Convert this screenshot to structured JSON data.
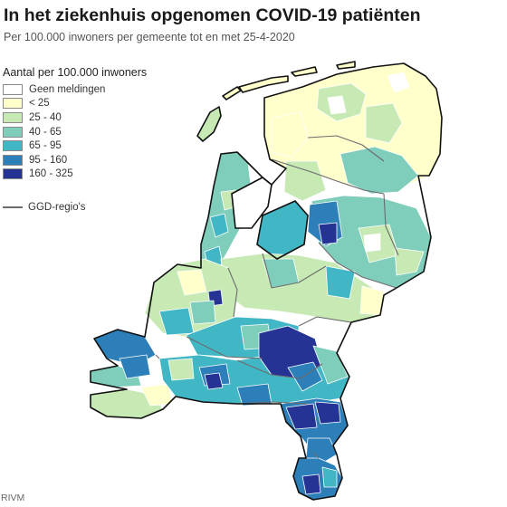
{
  "title": "In het ziekenhuis opgenomen COVID-19 patiënten",
  "subtitle": "Per 100.000 inwoners per gemeente tot en met 25-4-2020",
  "legend": {
    "title": "Aantal per 100.000 inwoners",
    "items": [
      {
        "label": "Geen meldingen",
        "color": "#ffffff"
      },
      {
        "label": "< 25",
        "color": "#ffffcc"
      },
      {
        "label": "25 - 40",
        "color": "#c7e9b4"
      },
      {
        "label": "40 - 65",
        "color": "#7fcdbb"
      },
      {
        "label": "65 - 95",
        "color": "#41b6c4"
      },
      {
        "label": "95 - 160",
        "color": "#2c7fb8"
      },
      {
        "label": "160 - 325",
        "color": "#253494"
      }
    ],
    "boundary_label": "GGD-regio's"
  },
  "source": "RIVM"
}
